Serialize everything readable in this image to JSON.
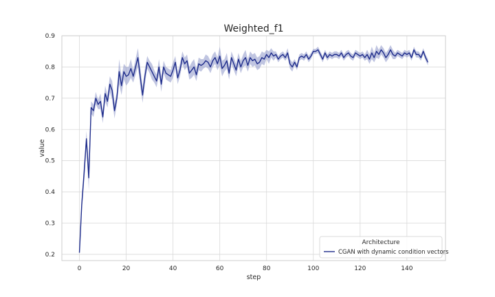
{
  "chart_data": {
    "type": "line",
    "title": "Weighted_f1",
    "xlabel": "step",
    "ylabel": "value",
    "xlim": [
      -7.5,
      156.5
    ],
    "ylim": [
      0.18,
      0.9
    ],
    "xticks": [
      0,
      20,
      40,
      60,
      80,
      100,
      120,
      140
    ],
    "yticks": [
      0.2,
      0.3,
      0.4,
      0.5,
      0.6,
      0.7,
      0.8,
      0.9
    ],
    "grid": true,
    "legend": {
      "title": "Architecture",
      "placement": "bottom-right"
    },
    "colors": {
      "line": "#1c2a8a",
      "band": "#8c96c8",
      "grid": "#d9d9d9",
      "frame": "#c8c8c8"
    },
    "series": [
      {
        "name": "CGAN with dynamic condition vectors",
        "x": [
          0,
          1,
          2,
          3,
          4,
          5,
          6,
          7,
          8,
          9,
          10,
          11,
          12,
          13,
          14,
          15,
          16,
          17,
          18,
          19,
          20,
          21,
          22,
          23,
          24,
          25,
          26,
          27,
          28,
          29,
          30,
          31,
          32,
          33,
          34,
          35,
          36,
          37,
          38,
          39,
          40,
          41,
          42,
          43,
          44,
          45,
          46,
          47,
          48,
          49,
          50,
          51,
          52,
          53,
          54,
          55,
          56,
          57,
          58,
          59,
          60,
          61,
          62,
          63,
          64,
          65,
          66,
          67,
          68,
          69,
          70,
          71,
          72,
          73,
          74,
          75,
          76,
          77,
          78,
          79,
          80,
          81,
          82,
          83,
          84,
          85,
          86,
          87,
          88,
          89,
          90,
          91,
          92,
          93,
          94,
          95,
          96,
          97,
          98,
          99,
          100,
          101,
          102,
          103,
          104,
          105,
          106,
          107,
          108,
          109,
          110,
          111,
          112,
          113,
          114,
          115,
          116,
          117,
          118,
          119,
          120,
          121,
          122,
          123,
          124,
          125,
          126,
          127,
          128,
          129,
          130,
          131,
          132,
          133,
          134,
          135,
          136,
          137,
          138,
          139,
          140,
          141,
          142,
          143,
          144,
          145,
          146,
          147,
          148,
          149
        ],
        "values": [
          0.205,
          0.36,
          0.46,
          0.57,
          0.445,
          0.67,
          0.66,
          0.7,
          0.68,
          0.69,
          0.64,
          0.715,
          0.69,
          0.745,
          0.725,
          0.66,
          0.7,
          0.785,
          0.74,
          0.785,
          0.77,
          0.775,
          0.795,
          0.77,
          0.8,
          0.83,
          0.77,
          0.71,
          0.77,
          0.815,
          0.8,
          0.785,
          0.77,
          0.755,
          0.8,
          0.745,
          0.8,
          0.78,
          0.775,
          0.77,
          0.79,
          0.815,
          0.765,
          0.79,
          0.83,
          0.81,
          0.82,
          0.78,
          0.79,
          0.8,
          0.775,
          0.81,
          0.805,
          0.81,
          0.82,
          0.815,
          0.8,
          0.82,
          0.83,
          0.81,
          0.835,
          0.795,
          0.805,
          0.82,
          0.78,
          0.83,
          0.81,
          0.79,
          0.825,
          0.8,
          0.82,
          0.83,
          0.805,
          0.83,
          0.82,
          0.825,
          0.81,
          0.815,
          0.83,
          0.825,
          0.84,
          0.83,
          0.845,
          0.835,
          0.84,
          0.825,
          0.835,
          0.84,
          0.83,
          0.845,
          0.81,
          0.8,
          0.815,
          0.8,
          0.83,
          0.835,
          0.83,
          0.84,
          0.825,
          0.835,
          0.85,
          0.85,
          0.855,
          0.84,
          0.825,
          0.845,
          0.83,
          0.84,
          0.835,
          0.84,
          0.84,
          0.835,
          0.845,
          0.83,
          0.84,
          0.845,
          0.835,
          0.83,
          0.845,
          0.84,
          0.835,
          0.84,
          0.83,
          0.84,
          0.825,
          0.845,
          0.83,
          0.85,
          0.84,
          0.855,
          0.845,
          0.83,
          0.84,
          0.855,
          0.84,
          0.835,
          0.845,
          0.84,
          0.835,
          0.845,
          0.84,
          0.845,
          0.83,
          0.855,
          0.84,
          0.84,
          0.83,
          0.85,
          0.83,
          0.815
        ],
        "ci_halfwidth": [
          0.005,
          0.02,
          0.03,
          0.025,
          0.04,
          0.02,
          0.02,
          0.02,
          0.015,
          0.025,
          0.02,
          0.025,
          0.02,
          0.025,
          0.03,
          0.025,
          0.02,
          0.04,
          0.03,
          0.025,
          0.03,
          0.025,
          0.03,
          0.02,
          0.025,
          0.03,
          0.03,
          0.025,
          0.025,
          0.02,
          0.02,
          0.025,
          0.02,
          0.02,
          0.025,
          0.025,
          0.02,
          0.02,
          0.02,
          0.02,
          0.025,
          0.02,
          0.02,
          0.02,
          0.02,
          0.02,
          0.02,
          0.02,
          0.025,
          0.025,
          0.02,
          0.02,
          0.02,
          0.015,
          0.02,
          0.02,
          0.02,
          0.02,
          0.02,
          0.02,
          0.03,
          0.025,
          0.02,
          0.025,
          0.02,
          0.02,
          0.02,
          0.02,
          0.02,
          0.02,
          0.02,
          0.025,
          0.02,
          0.02,
          0.02,
          0.02,
          0.02,
          0.02,
          0.02,
          0.02,
          0.015,
          0.02,
          0.015,
          0.015,
          0.01,
          0.01,
          0.01,
          0.01,
          0.01,
          0.015,
          0.015,
          0.015,
          0.01,
          0.01,
          0.01,
          0.01,
          0.01,
          0.01,
          0.01,
          0.01,
          0.008,
          0.008,
          0.01,
          0.01,
          0.01,
          0.01,
          0.01,
          0.01,
          0.01,
          0.01,
          0.01,
          0.01,
          0.01,
          0.01,
          0.01,
          0.01,
          0.01,
          0.01,
          0.01,
          0.01,
          0.01,
          0.01,
          0.01,
          0.015,
          0.015,
          0.02,
          0.015,
          0.02,
          0.015,
          0.015,
          0.015,
          0.015,
          0.015,
          0.015,
          0.015,
          0.01,
          0.01,
          0.01,
          0.01,
          0.01,
          0.01,
          0.01,
          0.01,
          0.01,
          0.01,
          0.01,
          0.01,
          0.01,
          0.01,
          0.01
        ]
      }
    ]
  }
}
